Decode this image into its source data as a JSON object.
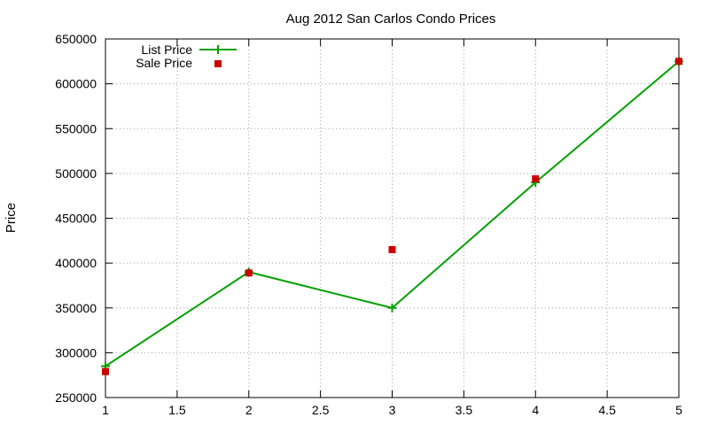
{
  "chart_data": {
    "type": "line",
    "title": "Aug 2012 San Carlos Condo Prices",
    "xlabel": "",
    "ylabel": "Price",
    "xlim": [
      1,
      5
    ],
    "ylim": [
      250000,
      650000
    ],
    "xticks": [
      1,
      1.5,
      2,
      2.5,
      3,
      3.5,
      4,
      4.5,
      5
    ],
    "xtick_labels": [
      "1",
      "1.5",
      "2",
      "2.5",
      "3",
      "3.5",
      "4",
      "4.5",
      "5"
    ],
    "yticks": [
      250000,
      300000,
      350000,
      400000,
      450000,
      500000,
      550000,
      600000,
      650000
    ],
    "ytick_labels": [
      "250000",
      "300000",
      "350000",
      "400000",
      "450000",
      "500000",
      "550000",
      "600000",
      "650000"
    ],
    "grid": true,
    "legend_position": "top-left",
    "series": [
      {
        "name": "List Price",
        "style": "line-with-plus-markers",
        "color": "#00a000",
        "x": [
          1,
          2,
          3,
          4,
          5
        ],
        "y": [
          285000,
          390000,
          350000,
          490000,
          625000
        ]
      },
      {
        "name": "Sale Price",
        "style": "square-markers",
        "color": "#cc0000",
        "x": [
          1,
          2,
          3,
          4,
          5
        ],
        "y": [
          279000,
          389000,
          415000,
          494000,
          625000
        ]
      }
    ]
  }
}
